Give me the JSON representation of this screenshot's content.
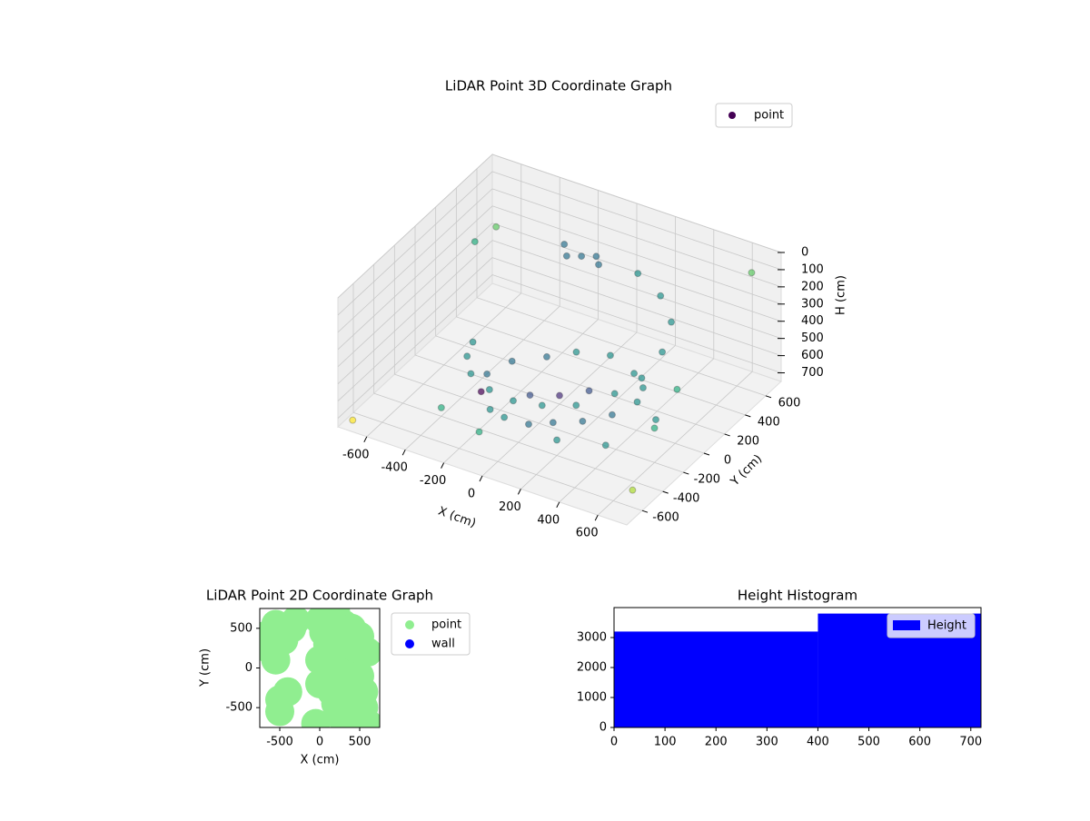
{
  "chart_data": [
    {
      "type": "scatter3d",
      "title": "LiDAR Point 3D Coordinate Graph",
      "x_label": "X (cm)",
      "y_label": "Y (cm)",
      "z_label": "H (cm)",
      "xlim": [
        -750,
        750
      ],
      "ylim": [
        -750,
        750
      ],
      "zlim": [
        0,
        750
      ],
      "z_inverted": true,
      "xticks": [
        -600,
        -400,
        -200,
        0,
        200,
        400,
        600
      ],
      "yticks": [
        -600,
        -400,
        -200,
        0,
        200,
        400,
        600
      ],
      "zticks": [
        0,
        100,
        200,
        300,
        400,
        500,
        600,
        700
      ],
      "colormap": "viridis",
      "legend": "upper right",
      "grid": true,
      "series": [
        {
          "name": "point",
          "color": "#440154",
          "x": [
            -300,
            -200,
            -100,
            0,
            100,
            200,
            300,
            350,
            300,
            200,
            50,
            -100,
            -200,
            -300,
            -350,
            0,
            100,
            -100,
            200,
            400,
            -400,
            500,
            450,
            -150,
            -450,
            -400,
            -300,
            -150,
            0,
            150,
            300,
            420,
            480,
            480,
            420,
            300,
            150,
            -100,
            -150,
            -50,
            0,
            -200,
            -650,
            700,
            -700,
            650,
            -600,
            600
          ],
          "y": [
            -200,
            -300,
            -350,
            -300,
            -250,
            -150,
            -50,
            100,
            250,
            350,
            400,
            350,
            250,
            100,
            -50,
            0,
            100,
            -100,
            -400,
            -300,
            -400,
            0,
            300,
            -500,
            0,
            -150,
            -300,
            -400,
            -450,
            -450,
            -400,
            -250,
            -100,
            100,
            300,
            420,
            480,
            400,
            350,
            450,
            380,
            420,
            600,
            -600,
            -700,
            650,
            300,
            -200
          ],
          "z": [
            680,
            690,
            670,
            700,
            680,
            690,
            670,
            660,
            680,
            690,
            670,
            680,
            690,
            670,
            680,
            700,
            690,
            680,
            660,
            670,
            700,
            650,
            660,
            690,
            560,
            540,
            520,
            500,
            480,
            450,
            420,
            390,
            360,
            320,
            280,
            240,
            200,
            150,
            140,
            160,
            150,
            130,
            300,
            650,
            720,
            100,
            200,
            550
          ]
        }
      ]
    },
    {
      "type": "scatter",
      "title": "LiDAR Point 2D Coordinate Graph",
      "x_label": "X (cm)",
      "y_label": "Y (cm)",
      "xlim": [
        -750,
        750
      ],
      "ylim": [
        -750,
        750
      ],
      "xticks": [
        -500,
        0,
        500
      ],
      "yticks": [
        -500,
        0,
        500
      ],
      "legend": "outside right",
      "series": [
        {
          "name": "point",
          "color": "#90ee90",
          "x": [
            0,
            100,
            200,
            300,
            400,
            500,
            600,
            100,
            200,
            300,
            400,
            500,
            0,
            150,
            350,
            550,
            250,
            450,
            -50,
            600,
            -700,
            -650,
            -550,
            -500,
            -400,
            -300,
            -500,
            -350,
            -550,
            -450,
            50,
            250,
            450,
            150,
            350,
            550,
            0,
            300,
            500,
            200
          ],
          "y": [
            600,
            650,
            700,
            550,
            500,
            400,
            200,
            300,
            200,
            100,
            0,
            -100,
            -200,
            -300,
            -400,
            -500,
            -600,
            -650,
            -700,
            -700,
            400,
            250,
            550,
            -400,
            -300,
            600,
            -550,
            500,
            100,
            350,
            450,
            400,
            250,
            0,
            -200,
            -300,
            100,
            -100,
            -500,
            -450
          ]
        },
        {
          "name": "wall",
          "color": "#0000ff",
          "x": [],
          "y": []
        }
      ]
    },
    {
      "type": "histogram",
      "title": "Height Histogram",
      "legend": "upper right",
      "series_name": "Height",
      "color": "#0000ff",
      "bins": [
        0,
        400,
        720
      ],
      "values": [
        3200,
        3800
      ],
      "xlim": [
        0,
        720
      ],
      "ylim": [
        0,
        4000
      ],
      "xticks": [
        0,
        100,
        200,
        300,
        400,
        500,
        600,
        700
      ],
      "yticks": [
        0,
        1000,
        2000,
        3000
      ]
    }
  ]
}
